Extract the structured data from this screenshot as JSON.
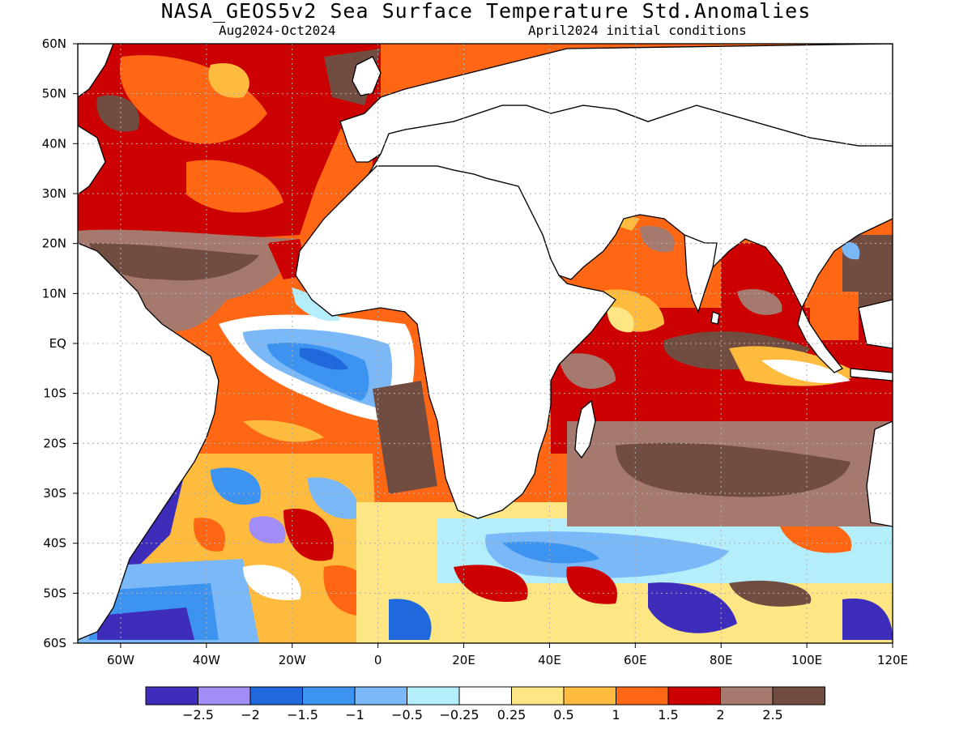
{
  "title": "NASA_GEOS5v2 Sea Surface Temperature Std.Anomalies",
  "period": "Aug2024-Oct2024",
  "init": "April2024 initial conditions",
  "map": {
    "lon_range": [
      -70,
      120
    ],
    "lat_range": [
      -60,
      60
    ],
    "lat_ticks": [
      "60N",
      "50N",
      "40N",
      "30N",
      "20N",
      "10N",
      "EQ",
      "10S",
      "20S",
      "30S",
      "40S",
      "50S",
      "60S"
    ],
    "lon_ticks": [
      "60W",
      "40W",
      "20W",
      "0",
      "20E",
      "40E",
      "60E",
      "80E",
      "100E",
      "120E"
    ],
    "grid": "dotted"
  },
  "colorbar": {
    "colors": [
      "#3e2dbb",
      "#a28cf5",
      "#2069dc",
      "#3c93f0",
      "#7ab8f8",
      "#b4eefa",
      "#ffffff",
      "#ffe685",
      "#ffbb3d",
      "#ff6714",
      "#cc0000",
      "#a6796f",
      "#714c40"
    ],
    "labels": [
      "−2.5",
      "−2",
      "−1.5",
      "−1",
      "−0.5",
      "−0.25",
      "0.25",
      "0.5",
      "1",
      "1.5",
      "2",
      "2.5"
    ]
  }
}
